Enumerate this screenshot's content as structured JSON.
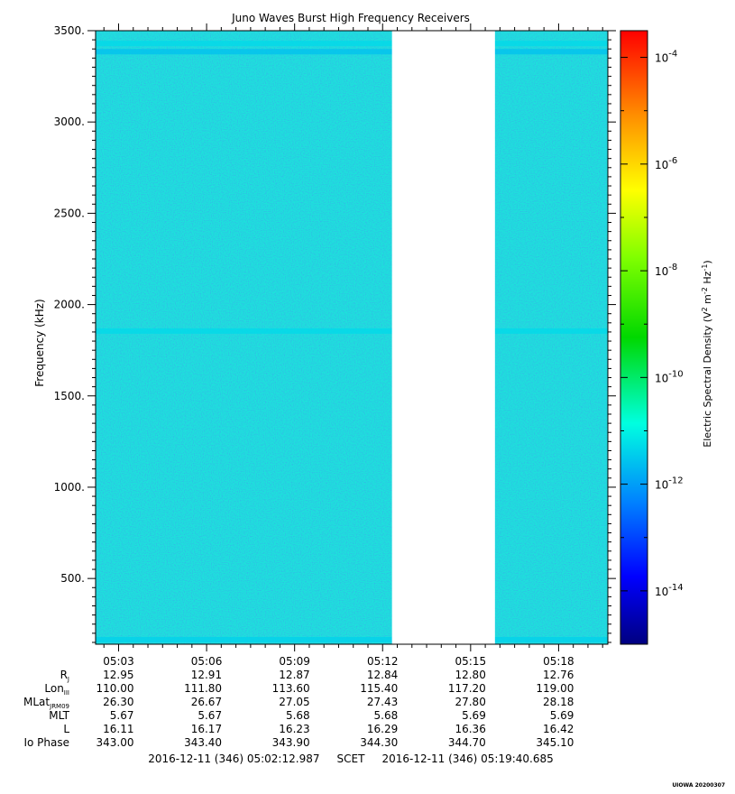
{
  "chart_data": {
    "type": "heatmap",
    "title": "Juno Waves Burst High Frequency Receivers",
    "ylabel": "Frequency (kHz)",
    "ylim": [
      140,
      3500
    ],
    "y_ticks": [
      "500.",
      "1000.",
      "1500.",
      "2000.",
      "2500.",
      "3000.",
      "3500."
    ],
    "y_tick_values": [
      500,
      1000,
      1500,
      2000,
      2500,
      3000,
      3500
    ],
    "x_tick_labels": [
      "05:03",
      "05:06",
      "05:09",
      "05:12",
      "05:15",
      "05:18"
    ],
    "x_tick_minutes": [
      3,
      6,
      9,
      12,
      15,
      18
    ],
    "x_range_minutes": [
      2.216,
      19.678
    ],
    "data_gap_minutes": [
      12.32,
      15.83
    ],
    "background_level_log10": -12,
    "emission_bands_khz": [
      {
        "center": 1855,
        "level_log10": -11.3
      },
      {
        "center": 3430,
        "level_log10": -11.3
      },
      {
        "center": 3385,
        "level_log10": -11.6
      },
      {
        "center": 165,
        "level_log10": -11.4
      }
    ],
    "colorbar": {
      "label": "Electric Spectral Density (V",
      "label_sup1": "2",
      "label_mid": " m",
      "label_sup2": "-2",
      "label_mid2": " Hz",
      "label_sup3": "-1",
      "label_end": ")",
      "range_log10": [
        -15,
        -3.5
      ],
      "tick_base": "10",
      "tick_exponents": [
        "-4",
        "-6",
        "-8",
        "-10",
        "-12",
        "-14"
      ],
      "tick_values_log10": [
        -4,
        -6,
        -8,
        -10,
        -12,
        -14
      ]
    },
    "ephemeris": {
      "rows": [
        {
          "label": "R",
          "sub": "J",
          "values": [
            "12.95",
            "12.91",
            "12.87",
            "12.84",
            "12.80",
            "12.76"
          ]
        },
        {
          "label": "Lon",
          "sub": "III",
          "values": [
            "110.00",
            "111.80",
            "113.60",
            "115.40",
            "117.20",
            "119.00"
          ]
        },
        {
          "label": "MLat",
          "sub": "JRM09",
          "values": [
            "26.30",
            "26.67",
            "27.05",
            "27.43",
            "27.80",
            "28.18"
          ]
        },
        {
          "label": "MLT",
          "sub": "",
          "values": [
            "5.67",
            "5.67",
            "5.68",
            "5.68",
            "5.69",
            "5.69"
          ]
        },
        {
          "label": "L",
          "sub": "",
          "values": [
            "16.11",
            "16.17",
            "16.23",
            "16.29",
            "16.36",
            "16.42"
          ]
        },
        {
          "label": "Io Phase",
          "sub": "",
          "values": [
            "343.00",
            "343.40",
            "343.90",
            "344.30",
            "344.70",
            "345.10"
          ]
        }
      ]
    },
    "time_range_text": "2016-12-11 (346) 05:02:12.987     SCET     2016-12-11 (346) 05:19:40.685",
    "stamp": "UIOWA 20200307"
  }
}
